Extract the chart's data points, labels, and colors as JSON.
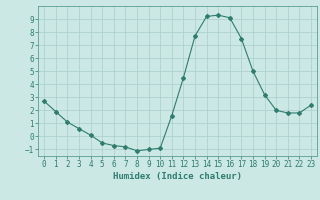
{
  "x": [
    0,
    1,
    2,
    3,
    4,
    5,
    6,
    7,
    8,
    9,
    10,
    11,
    12,
    13,
    14,
    15,
    16,
    17,
    18,
    19,
    20,
    21,
    22,
    23
  ],
  "y": [
    2.7,
    1.9,
    1.1,
    0.6,
    0.1,
    -0.5,
    -0.7,
    -0.8,
    -1.1,
    -1.0,
    -0.9,
    1.6,
    4.5,
    7.7,
    9.2,
    9.3,
    9.1,
    7.5,
    5.0,
    3.2,
    2.0,
    1.8,
    1.8,
    2.4
  ],
  "line_color": "#2e7d6e",
  "marker": "D",
  "marker_size": 2,
  "bg_color": "#cce8e4",
  "grid_color": "#aacfcb",
  "xlabel": "Humidex (Indice chaleur)",
  "ylim": [
    -1.5,
    10.0
  ],
  "xlim": [
    -0.5,
    23.5
  ],
  "yticks": [
    -1,
    0,
    1,
    2,
    3,
    4,
    5,
    6,
    7,
    8,
    9
  ],
  "xticks": [
    0,
    1,
    2,
    3,
    4,
    5,
    6,
    7,
    8,
    9,
    10,
    11,
    12,
    13,
    14,
    15,
    16,
    17,
    18,
    19,
    20,
    21,
    22,
    23
  ],
  "tick_fontsize": 5.5,
  "xlabel_fontsize": 6.5
}
